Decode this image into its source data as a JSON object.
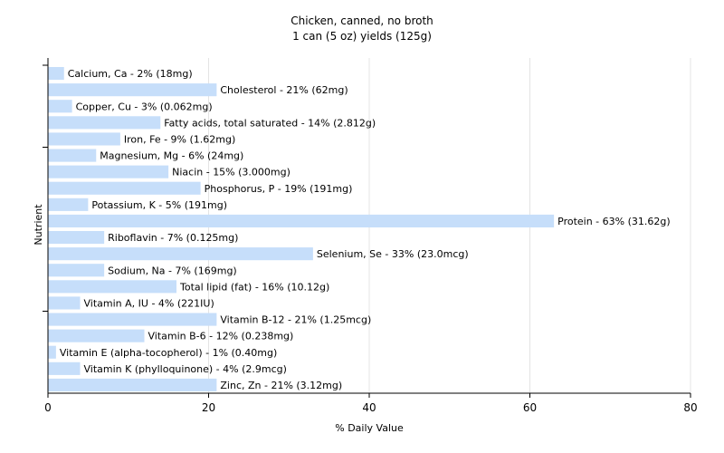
{
  "chart_data": {
    "type": "bar",
    "orientation": "horizontal",
    "title": "Chicken, canned, no broth",
    "subtitle": "1 can (5 oz) yields (125g)",
    "xlabel": "% Daily Value",
    "ylabel": "Nutrient",
    "xlim": [
      0,
      80
    ],
    "xticks": [
      "0",
      "20",
      "40",
      "60",
      "80"
    ],
    "grid": true,
    "bar_color": "#c6defa",
    "categories": [
      "Calcium, Ca",
      "Cholesterol",
      "Copper, Cu",
      "Fatty acids, total saturated",
      "Iron, Fe",
      "Magnesium, Mg",
      "Niacin",
      "Phosphorus, P",
      "Potassium, K",
      "Protein",
      "Riboflavin",
      "Selenium, Se",
      "Sodium, Na",
      "Total lipid (fat)",
      "Vitamin A, IU",
      "Vitamin B-12",
      "Vitamin B-6",
      "Vitamin E (alpha-tocopherol)",
      "Vitamin K (phylloquinone)",
      "Zinc, Zn"
    ],
    "values": [
      2,
      21,
      3,
      14,
      9,
      6,
      15,
      19,
      5,
      63,
      7,
      33,
      7,
      16,
      4,
      21,
      12,
      1,
      4,
      21
    ],
    "labels": [
      "Calcium, Ca - 2% (18mg)",
      "Cholesterol - 21% (62mg)",
      "Copper, Cu - 3% (0.062mg)",
      "Fatty acids, total saturated - 14% (2.812g)",
      "Iron, Fe - 9% (1.62mg)",
      "Magnesium, Mg - 6% (24mg)",
      "Niacin - 15% (3.000mg)",
      "Phosphorus, P - 19% (191mg)",
      "Potassium, K - 5% (191mg)",
      "Protein - 63% (31.62g)",
      "Riboflavin - 7% (0.125mg)",
      "Selenium, Se - 33% (23.0mcg)",
      "Sodium, Na - 7% (169mg)",
      "Total lipid (fat) - 16% (10.12g)",
      "Vitamin A, IU - 4% (221IU)",
      "Vitamin B-12 - 21% (1.25mcg)",
      "Vitamin B-6 - 12% (0.238mg)",
      "Vitamin E (alpha-tocopherol) - 1% (0.40mg)",
      "Vitamin K (phylloquinone) - 4% (2.9mcg)",
      "Zinc, Zn - 21% (3.12mg)"
    ]
  }
}
